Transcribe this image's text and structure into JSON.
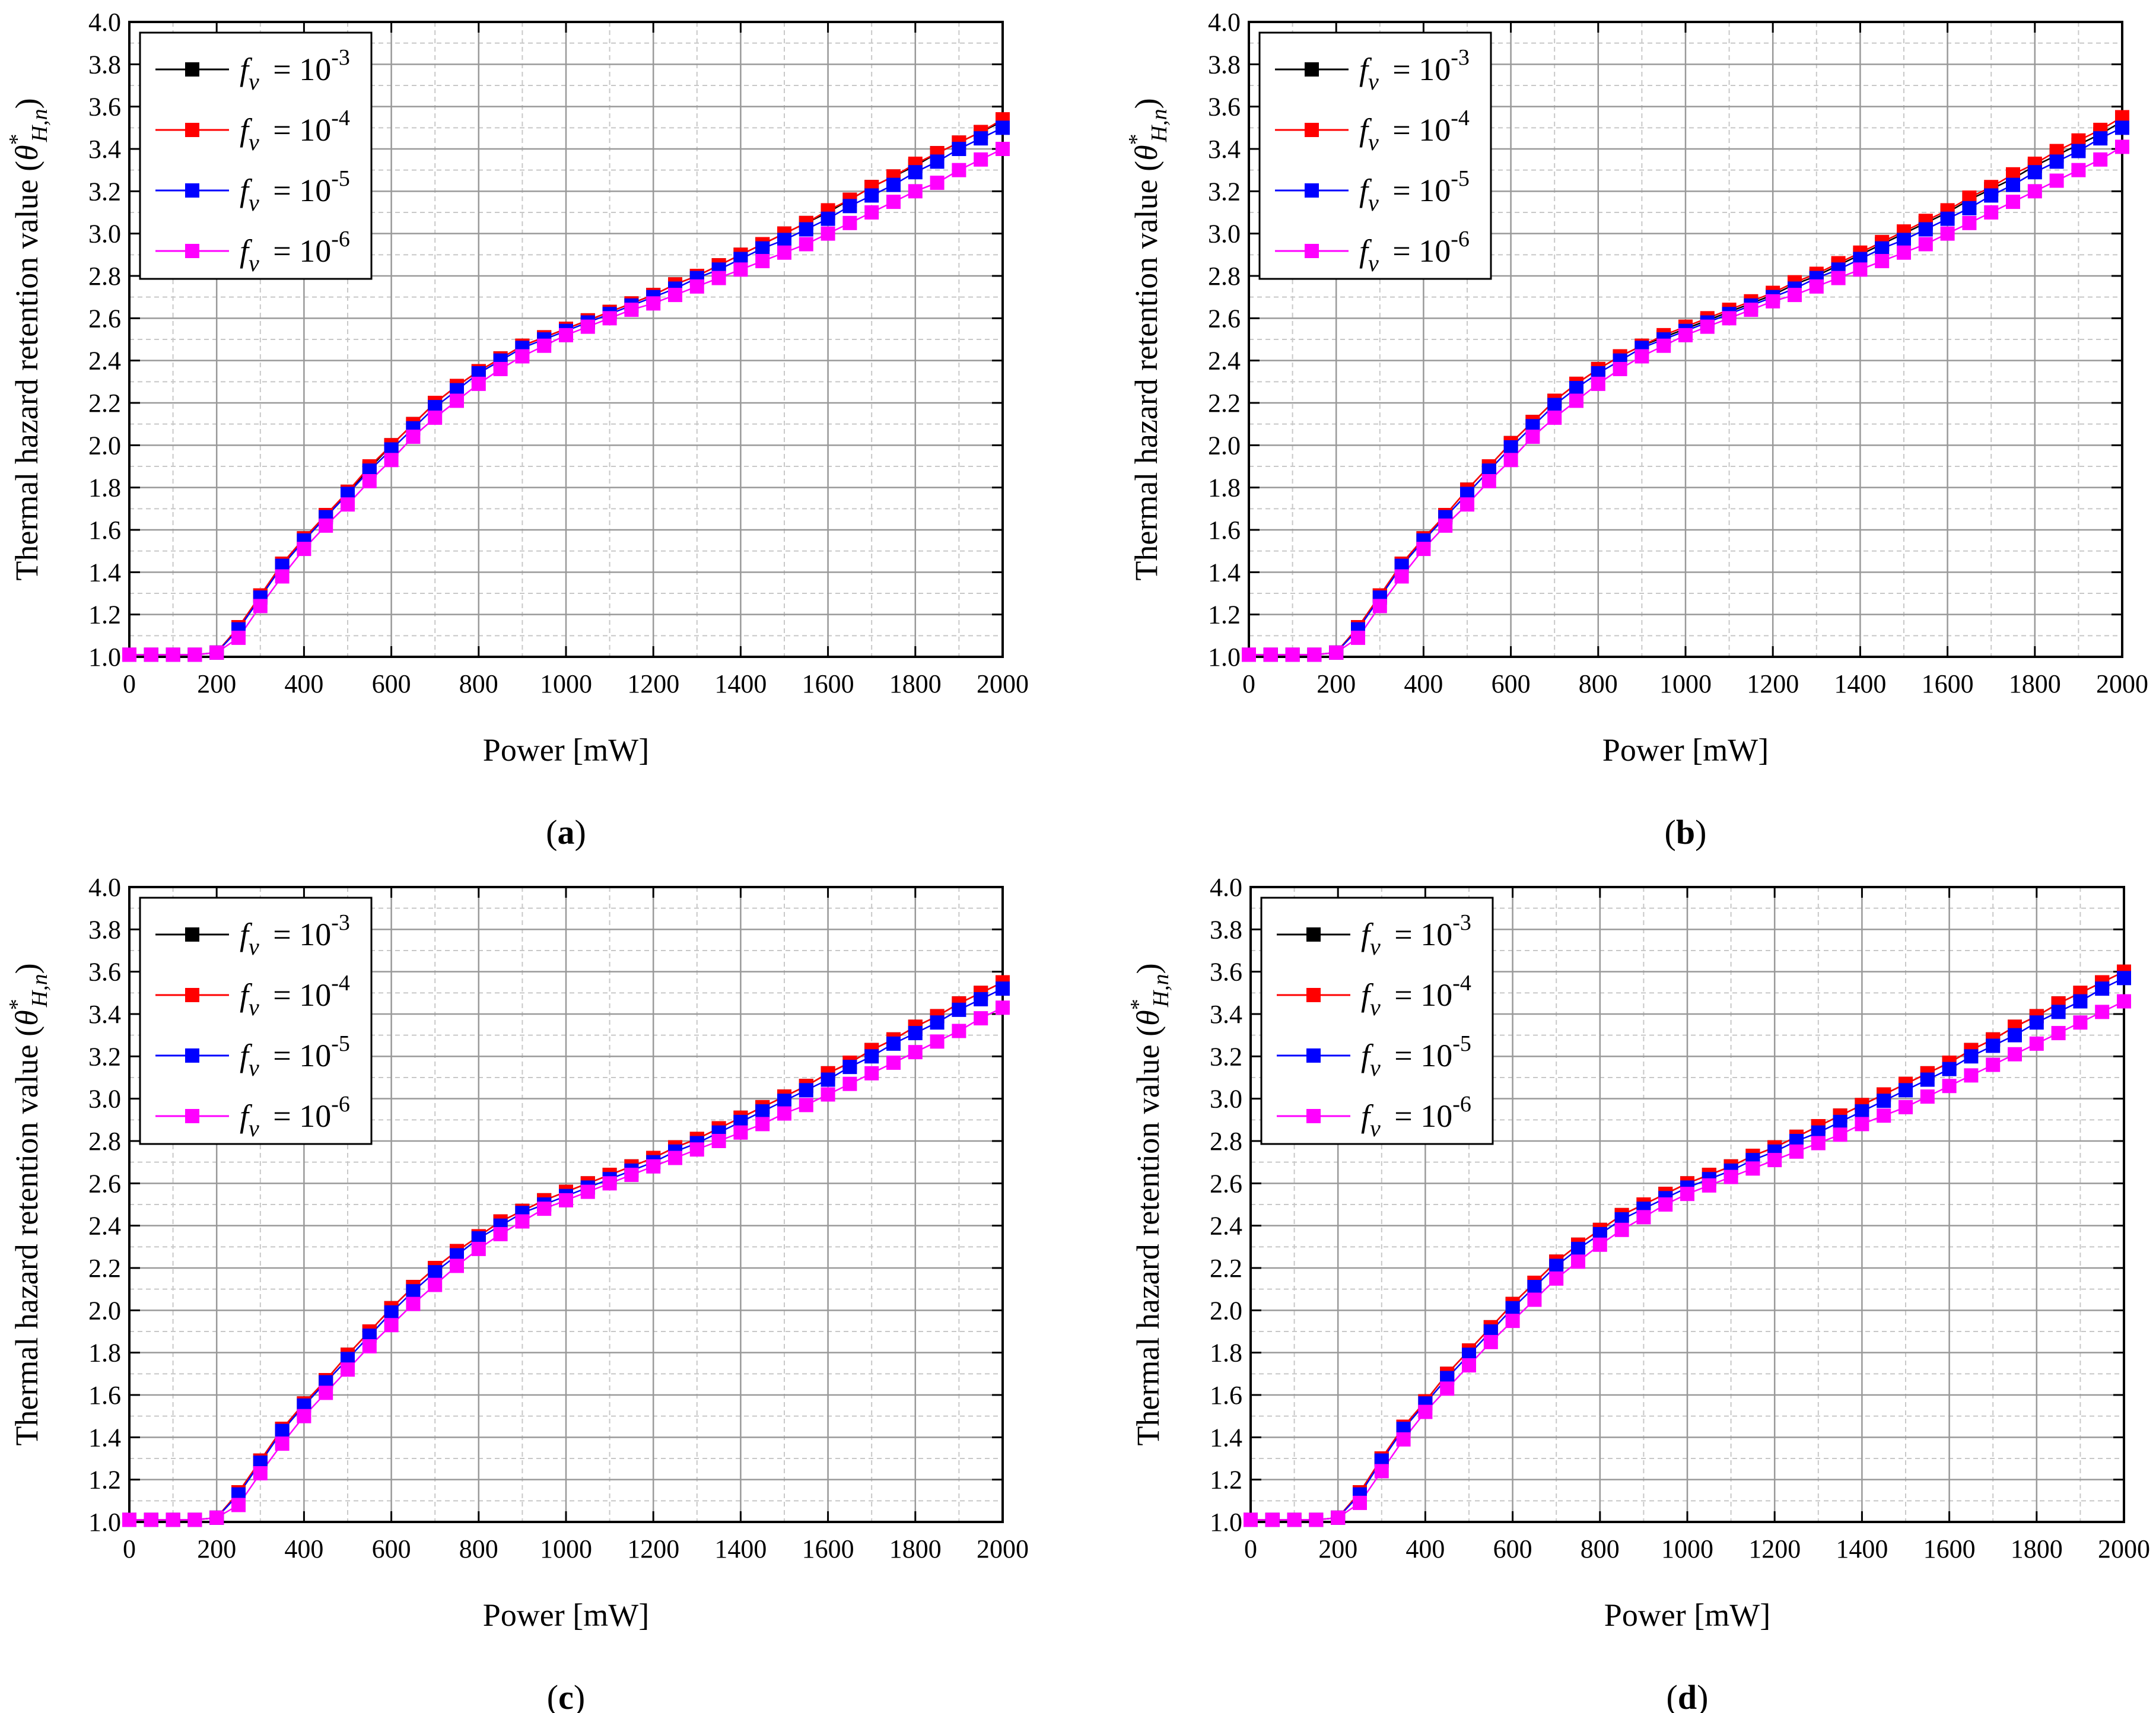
{
  "figure": {
    "x_axis_label": "Power [mW]",
    "y_axis_label": "Thermal hazard retention value",
    "y_axis_symbol": "θ",
    "y_axis_superscript": "*",
    "y_axis_subscript": "H,n"
  },
  "legend_prefix": "f",
  "legend_prefix_sub": "v",
  "legend_equals": "= 10",
  "colors": {
    "black": "#000000",
    "red": "#ff0000",
    "blue": "#0000ff",
    "magenta": "#ff00ff",
    "grid": "#999999",
    "minor_grid": "#c8c8c8"
  },
  "chart_data": [
    {
      "type": "line",
      "panel_label": "a",
      "xlabel": "Power [mW]",
      "ylabel": "Thermal hazard retention value",
      "xlim": [
        0,
        2000
      ],
      "ylim": [
        1.0,
        4.0
      ],
      "x_ticks": [
        "0",
        "200",
        "400",
        "600",
        "800",
        "1000",
        "1200",
        "1400",
        "1600",
        "1800",
        "2000"
      ],
      "y_ticks": [
        "1.0",
        "1.2",
        "1.4",
        "1.6",
        "1.8",
        "2.0",
        "2.2",
        "2.4",
        "2.6",
        "2.8",
        "3.0",
        "3.2",
        "3.4",
        "3.6",
        "3.8",
        "4.0"
      ],
      "legend_position": "top-left",
      "x": [
        0,
        50,
        100,
        150,
        200,
        250,
        300,
        350,
        400,
        450,
        500,
        550,
        600,
        650,
        700,
        750,
        800,
        850,
        900,
        950,
        1000,
        1050,
        1100,
        1150,
        1200,
        1250,
        1300,
        1350,
        1400,
        1450,
        1500,
        1550,
        1600,
        1650,
        1700,
        1750,
        1800,
        1850,
        1900,
        1950,
        2000
      ],
      "series": [
        {
          "name": "fv = 10^-3",
          "exponent": "-3",
          "color": "#000000",
          "values": [
            1.01,
            1.01,
            1.01,
            1.01,
            1.02,
            1.14,
            1.29,
            1.44,
            1.56,
            1.67,
            1.78,
            1.89,
            2.0,
            2.1,
            2.2,
            2.28,
            2.35,
            2.41,
            2.47,
            2.51,
            2.55,
            2.59,
            2.63,
            2.67,
            2.71,
            2.76,
            2.8,
            2.85,
            2.9,
            2.95,
            3.0,
            3.05,
            3.1,
            3.16,
            3.22,
            3.27,
            3.32,
            3.38,
            3.43,
            3.48,
            3.53
          ]
        },
        {
          "name": "fv = 10^-4",
          "exponent": "-4",
          "color": "#ff0000",
          "values": [
            1.01,
            1.01,
            1.01,
            1.01,
            1.02,
            1.14,
            1.29,
            1.44,
            1.56,
            1.67,
            1.78,
            1.9,
            2.0,
            2.1,
            2.2,
            2.28,
            2.35,
            2.41,
            2.47,
            2.51,
            2.55,
            2.59,
            2.63,
            2.67,
            2.71,
            2.76,
            2.8,
            2.85,
            2.9,
            2.95,
            3.0,
            3.05,
            3.11,
            3.16,
            3.22,
            3.27,
            3.33,
            3.38,
            3.43,
            3.48,
            3.54
          ]
        },
        {
          "name": "fv = 10^-5",
          "exponent": "-5",
          "color": "#0000ff",
          "values": [
            1.01,
            1.01,
            1.01,
            1.01,
            1.02,
            1.13,
            1.28,
            1.43,
            1.55,
            1.66,
            1.77,
            1.88,
            1.98,
            2.08,
            2.18,
            2.26,
            2.34,
            2.4,
            2.46,
            2.5,
            2.54,
            2.58,
            2.62,
            2.66,
            2.7,
            2.74,
            2.79,
            2.83,
            2.88,
            2.93,
            2.97,
            3.02,
            3.07,
            3.13,
            3.18,
            3.23,
            3.29,
            3.34,
            3.4,
            3.45,
            3.5
          ]
        },
        {
          "name": "fv = 10^-6",
          "exponent": "-6",
          "color": "#ff00ff",
          "values": [
            1.01,
            1.01,
            1.01,
            1.01,
            1.02,
            1.09,
            1.24,
            1.38,
            1.51,
            1.62,
            1.72,
            1.83,
            1.93,
            2.04,
            2.13,
            2.21,
            2.29,
            2.36,
            2.42,
            2.47,
            2.52,
            2.56,
            2.6,
            2.64,
            2.67,
            2.71,
            2.75,
            2.79,
            2.83,
            2.87,
            2.91,
            2.95,
            3.0,
            3.05,
            3.1,
            3.15,
            3.2,
            3.24,
            3.3,
            3.35,
            3.4
          ]
        }
      ]
    },
    {
      "type": "line",
      "panel_label": "b",
      "xlabel": "Power [mW]",
      "ylabel": "Thermal hazard retention value",
      "xlim": [
        0,
        2000
      ],
      "ylim": [
        1.0,
        4.0
      ],
      "x_ticks": [
        "0",
        "200",
        "400",
        "600",
        "800",
        "1000",
        "1200",
        "1400",
        "1600",
        "1800",
        "2000"
      ],
      "y_ticks": [
        "1.0",
        "1.2",
        "1.4",
        "1.6",
        "1.8",
        "2.0",
        "2.2",
        "2.4",
        "2.6",
        "2.8",
        "3.0",
        "3.2",
        "3.4",
        "3.6",
        "3.8",
        "4.0"
      ],
      "legend_position": "top-left",
      "x": [
        0,
        50,
        100,
        150,
        200,
        250,
        300,
        350,
        400,
        450,
        500,
        550,
        600,
        650,
        700,
        750,
        800,
        850,
        900,
        950,
        1000,
        1050,
        1100,
        1150,
        1200,
        1250,
        1300,
        1350,
        1400,
        1450,
        1500,
        1550,
        1600,
        1650,
        1700,
        1750,
        1800,
        1850,
        1900,
        1950,
        2000
      ],
      "series": [
        {
          "name": "fv = 10^-3",
          "exponent": "-3",
          "color": "#000000",
          "values": [
            1.01,
            1.01,
            1.01,
            1.01,
            1.02,
            1.14,
            1.29,
            1.44,
            1.56,
            1.67,
            1.79,
            1.9,
            2.01,
            2.11,
            2.21,
            2.29,
            2.36,
            2.42,
            2.47,
            2.51,
            2.55,
            2.59,
            2.63,
            2.67,
            2.71,
            2.76,
            2.8,
            2.85,
            2.9,
            2.95,
            3.0,
            3.05,
            3.1,
            3.16,
            3.21,
            3.26,
            3.32,
            3.37,
            3.42,
            3.47,
            3.53
          ]
        },
        {
          "name": "fv = 10^-4",
          "exponent": "-4",
          "color": "#ff0000",
          "values": [
            1.01,
            1.01,
            1.01,
            1.01,
            1.02,
            1.14,
            1.29,
            1.44,
            1.56,
            1.67,
            1.79,
            1.9,
            2.01,
            2.11,
            2.21,
            2.29,
            2.36,
            2.42,
            2.47,
            2.52,
            2.56,
            2.6,
            2.64,
            2.68,
            2.72,
            2.77,
            2.81,
            2.86,
            2.91,
            2.96,
            3.01,
            3.06,
            3.11,
            3.17,
            3.22,
            3.28,
            3.33,
            3.39,
            3.44,
            3.49,
            3.55
          ]
        },
        {
          "name": "fv = 10^-5",
          "exponent": "-5",
          "color": "#0000ff",
          "values": [
            1.01,
            1.01,
            1.01,
            1.01,
            1.02,
            1.13,
            1.28,
            1.43,
            1.55,
            1.66,
            1.77,
            1.88,
            1.99,
            2.09,
            2.19,
            2.27,
            2.34,
            2.4,
            2.46,
            2.5,
            2.54,
            2.58,
            2.62,
            2.66,
            2.7,
            2.74,
            2.79,
            2.83,
            2.88,
            2.93,
            2.97,
            3.02,
            3.07,
            3.12,
            3.18,
            3.23,
            3.29,
            3.34,
            3.39,
            3.45,
            3.5
          ]
        },
        {
          "name": "fv = 10^-6",
          "exponent": "-6",
          "color": "#ff00ff",
          "values": [
            1.01,
            1.01,
            1.01,
            1.01,
            1.02,
            1.09,
            1.24,
            1.38,
            1.51,
            1.62,
            1.72,
            1.83,
            1.93,
            2.04,
            2.13,
            2.21,
            2.29,
            2.36,
            2.42,
            2.47,
            2.52,
            2.56,
            2.6,
            2.64,
            2.68,
            2.71,
            2.75,
            2.79,
            2.83,
            2.87,
            2.91,
            2.95,
            3.0,
            3.05,
            3.1,
            3.15,
            3.2,
            3.25,
            3.3,
            3.35,
            3.41
          ]
        }
      ]
    },
    {
      "type": "line",
      "panel_label": "c",
      "xlabel": "Power [mW]",
      "ylabel": "Thermal hazard retention value",
      "xlim": [
        0,
        2000
      ],
      "ylim": [
        1.0,
        4.0
      ],
      "x_ticks": [
        "0",
        "200",
        "400",
        "600",
        "800",
        "1000",
        "1200",
        "1400",
        "1600",
        "1800",
        "2000"
      ],
      "y_ticks": [
        "1.0",
        "1.2",
        "1.4",
        "1.6",
        "1.8",
        "2.0",
        "2.2",
        "2.4",
        "2.6",
        "2.8",
        "3.0",
        "3.2",
        "3.4",
        "3.6",
        "3.8",
        "4.0"
      ],
      "legend_position": "top-left",
      "x": [
        0,
        50,
        100,
        150,
        200,
        250,
        300,
        350,
        400,
        450,
        500,
        550,
        600,
        650,
        700,
        750,
        800,
        850,
        900,
        950,
        1000,
        1050,
        1100,
        1150,
        1200,
        1250,
        1300,
        1350,
        1400,
        1450,
        1500,
        1550,
        1600,
        1650,
        1700,
        1750,
        1800,
        1850,
        1900,
        1950,
        2000
      ],
      "series": [
        {
          "name": "fv = 10^-3",
          "exponent": "-3",
          "color": "#000000",
          "values": [
            1.01,
            1.01,
            1.01,
            1.01,
            1.02,
            1.14,
            1.29,
            1.44,
            1.56,
            1.67,
            1.79,
            1.9,
            2.01,
            2.11,
            2.2,
            2.28,
            2.35,
            2.42,
            2.47,
            2.52,
            2.56,
            2.6,
            2.64,
            2.68,
            2.72,
            2.77,
            2.81,
            2.86,
            2.91,
            2.96,
            3.01,
            3.06,
            3.12,
            3.17,
            3.23,
            3.28,
            3.34,
            3.39,
            3.45,
            3.5,
            3.55
          ]
        },
        {
          "name": "fv = 10^-4",
          "exponent": "-4",
          "color": "#ff0000",
          "values": [
            1.01,
            1.01,
            1.01,
            1.01,
            1.02,
            1.14,
            1.29,
            1.44,
            1.56,
            1.67,
            1.79,
            1.9,
            2.01,
            2.11,
            2.2,
            2.28,
            2.35,
            2.42,
            2.47,
            2.52,
            2.56,
            2.6,
            2.64,
            2.68,
            2.72,
            2.77,
            2.81,
            2.86,
            2.91,
            2.96,
            3.01,
            3.06,
            3.12,
            3.17,
            3.23,
            3.28,
            3.34,
            3.39,
            3.45,
            3.5,
            3.55
          ]
        },
        {
          "name": "fv = 10^-5",
          "exponent": "-5",
          "color": "#0000ff",
          "values": [
            1.01,
            1.01,
            1.01,
            1.01,
            1.02,
            1.13,
            1.28,
            1.43,
            1.55,
            1.66,
            1.77,
            1.88,
            1.99,
            2.09,
            2.18,
            2.26,
            2.34,
            2.4,
            2.46,
            2.5,
            2.54,
            2.58,
            2.62,
            2.66,
            2.7,
            2.75,
            2.79,
            2.84,
            2.89,
            2.94,
            2.99,
            3.04,
            3.09,
            3.15,
            3.2,
            3.26,
            3.31,
            3.36,
            3.42,
            3.47,
            3.52
          ]
        },
        {
          "name": "fv = 10^-6",
          "exponent": "-6",
          "color": "#ff00ff",
          "values": [
            1.01,
            1.01,
            1.01,
            1.01,
            1.02,
            1.08,
            1.23,
            1.37,
            1.5,
            1.61,
            1.72,
            1.83,
            1.93,
            2.03,
            2.12,
            2.21,
            2.29,
            2.36,
            2.42,
            2.48,
            2.52,
            2.56,
            2.6,
            2.64,
            2.68,
            2.72,
            2.76,
            2.8,
            2.84,
            2.88,
            2.93,
            2.97,
            3.02,
            3.07,
            3.12,
            3.17,
            3.22,
            3.27,
            3.32,
            3.38,
            3.43
          ]
        }
      ]
    },
    {
      "type": "line",
      "panel_label": "d",
      "xlabel": "Power [mW]",
      "ylabel": "Thermal hazard retention value",
      "xlim": [
        0,
        2000
      ],
      "ylim": [
        1.0,
        4.0
      ],
      "x_ticks": [
        "0",
        "200",
        "400",
        "600",
        "800",
        "1000",
        "1200",
        "1400",
        "1600",
        "1800",
        "2000"
      ],
      "y_ticks": [
        "1.0",
        "1.2",
        "1.4",
        "1.6",
        "1.8",
        "2.0",
        "2.2",
        "2.4",
        "2.6",
        "2.8",
        "3.0",
        "3.2",
        "3.4",
        "3.6",
        "3.8",
        "4.0"
      ],
      "legend_position": "top-left",
      "x": [
        0,
        50,
        100,
        150,
        200,
        250,
        300,
        350,
        400,
        450,
        500,
        550,
        600,
        650,
        700,
        750,
        800,
        850,
        900,
        950,
        1000,
        1050,
        1100,
        1150,
        1200,
        1250,
        1300,
        1350,
        1400,
        1450,
        1500,
        1550,
        1600,
        1650,
        1700,
        1750,
        1800,
        1850,
        1900,
        1950,
        2000
      ],
      "series": [
        {
          "name": "fv = 10^-3",
          "exponent": "-3",
          "color": "#000000",
          "values": [
            1.01,
            1.01,
            1.01,
            1.01,
            1.02,
            1.14,
            1.3,
            1.45,
            1.57,
            1.7,
            1.81,
            1.92,
            2.03,
            2.13,
            2.23,
            2.31,
            2.38,
            2.45,
            2.5,
            2.55,
            2.6,
            2.64,
            2.68,
            2.73,
            2.77,
            2.82,
            2.87,
            2.92,
            2.97,
            3.02,
            3.07,
            3.12,
            3.17,
            3.23,
            3.28,
            3.34,
            3.39,
            3.45,
            3.5,
            3.55,
            3.6
          ]
        },
        {
          "name": "fv = 10^-4",
          "exponent": "-4",
          "color": "#ff0000",
          "values": [
            1.01,
            1.01,
            1.01,
            1.01,
            1.02,
            1.14,
            1.3,
            1.45,
            1.57,
            1.7,
            1.81,
            1.92,
            2.03,
            2.13,
            2.23,
            2.31,
            2.38,
            2.45,
            2.5,
            2.55,
            2.6,
            2.64,
            2.68,
            2.73,
            2.77,
            2.82,
            2.87,
            2.92,
            2.97,
            3.02,
            3.07,
            3.12,
            3.17,
            3.23,
            3.28,
            3.34,
            3.39,
            3.45,
            3.5,
            3.55,
            3.6
          ]
        },
        {
          "name": "fv = 10^-5",
          "exponent": "-5",
          "color": "#0000ff",
          "values": [
            1.01,
            1.01,
            1.01,
            1.01,
            1.02,
            1.13,
            1.29,
            1.44,
            1.56,
            1.68,
            1.79,
            1.9,
            2.01,
            2.11,
            2.21,
            2.29,
            2.36,
            2.43,
            2.48,
            2.53,
            2.58,
            2.62,
            2.66,
            2.71,
            2.75,
            2.8,
            2.84,
            2.89,
            2.94,
            2.99,
            3.04,
            3.09,
            3.14,
            3.2,
            3.25,
            3.3,
            3.36,
            3.41,
            3.46,
            3.52,
            3.57
          ]
        },
        {
          "name": "fv = 10^-6",
          "exponent": "-6",
          "color": "#ff00ff",
          "values": [
            1.01,
            1.01,
            1.01,
            1.01,
            1.02,
            1.09,
            1.24,
            1.39,
            1.52,
            1.63,
            1.74,
            1.85,
            1.95,
            2.05,
            2.15,
            2.23,
            2.31,
            2.38,
            2.44,
            2.5,
            2.55,
            2.59,
            2.63,
            2.67,
            2.71,
            2.75,
            2.79,
            2.83,
            2.88,
            2.92,
            2.96,
            3.01,
            3.06,
            3.11,
            3.16,
            3.21,
            3.26,
            3.31,
            3.36,
            3.41,
            3.46
          ]
        }
      ]
    }
  ]
}
